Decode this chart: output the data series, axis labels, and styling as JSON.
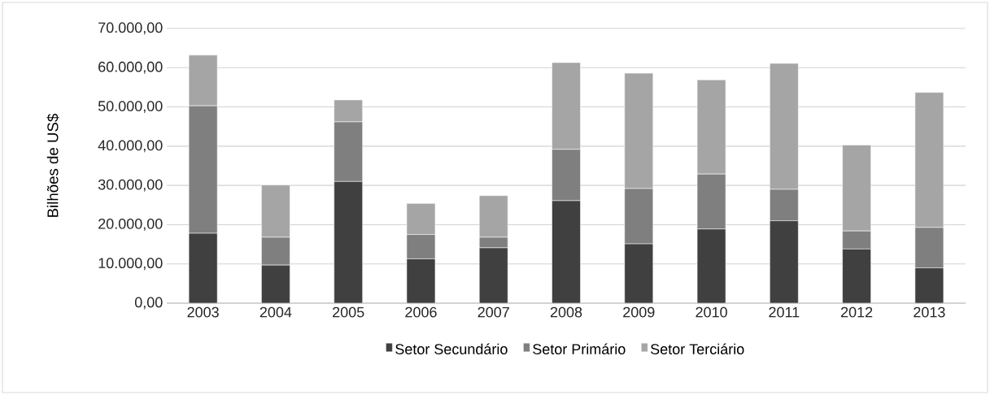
{
  "chart_data": {
    "type": "bar",
    "stacked": true,
    "ylabel": "Bilhões de US$",
    "categories": [
      "2003",
      "2004",
      "2005",
      "2006",
      "2007",
      "2008",
      "2009",
      "2010",
      "2011",
      "2012",
      "2013"
    ],
    "series": [
      {
        "name": "Setor Secundário",
        "color": "#404040",
        "values": [
          17800,
          9700,
          31000,
          11300,
          14100,
          26100,
          15100,
          18900,
          21000,
          13800,
          9000
        ]
      },
      {
        "name": "Setor Primário",
        "color": "#7f7f7f",
        "values": [
          32500,
          7100,
          15200,
          6200,
          2700,
          13100,
          14100,
          14000,
          8000,
          4600,
          10300
        ]
      },
      {
        "name": "Setor Terciário",
        "color": "#a5a5a5",
        "values": [
          12900,
          13300,
          5600,
          7900,
          10600,
          22100,
          29400,
          24000,
          32100,
          21900,
          34400
        ]
      }
    ],
    "ylim": [
      0,
      70000
    ],
    "yticks": [
      {
        "value": 0,
        "label": "0,00"
      },
      {
        "value": 10000,
        "label": "10.000,00"
      },
      {
        "value": 20000,
        "label": "20.000,00"
      },
      {
        "value": 30000,
        "label": "30.000,00"
      },
      {
        "value": 40000,
        "label": "40.000,00"
      },
      {
        "value": 50000,
        "label": "50.000,00"
      },
      {
        "value": 60000,
        "label": "60.000,00"
      },
      {
        "value": 70000,
        "label": "70.000,00"
      }
    ],
    "grid": "y",
    "legend": "bottom"
  }
}
